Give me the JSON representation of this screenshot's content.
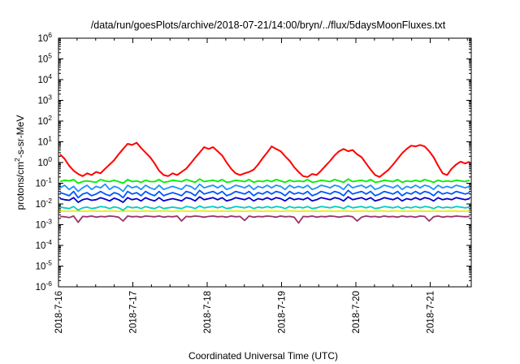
{
  "chart_data": {
    "type": "line",
    "title": "/data/run/goesPlots/archive/2018-07-21/14:00/bryn/../flux/5daysMoonFluxes.txt",
    "xlabel": "Coordinated Universal Time (UTC)",
    "ylabel_parts": [
      "protons/cm",
      "2",
      "-s-sr-MeV"
    ],
    "y_scale": "log",
    "ylim": [
      1e-06,
      1000000.0
    ],
    "y_ticks": [
      {
        "base": "10",
        "exp": "-6",
        "value": -6
      },
      {
        "base": "10",
        "exp": "-5",
        "value": -5
      },
      {
        "base": "10",
        "exp": "-4",
        "value": -4
      },
      {
        "base": "10",
        "exp": "-3",
        "value": -3
      },
      {
        "base": "10",
        "exp": "-2",
        "value": -2
      },
      {
        "base": "10",
        "exp": "-1",
        "value": -1
      },
      {
        "base": "10",
        "exp": "0",
        "value": 0
      },
      {
        "base": "10",
        "exp": "1",
        "value": 1
      },
      {
        "base": "10",
        "exp": "2",
        "value": 2
      },
      {
        "base": "10",
        "exp": "3",
        "value": 3
      },
      {
        "base": "10",
        "exp": "4",
        "value": 4
      },
      {
        "base": "10",
        "exp": "5",
        "value": 5
      },
      {
        "base": "10",
        "exp": "6",
        "value": 6
      }
    ],
    "x_range_days": [
      "2018-7-16",
      "2018-7-21 14:00"
    ],
    "x_ticks": [
      "2018-7-16",
      "2018-7-17",
      "2018-7-18",
      "2018-7-19",
      "2018-7-20",
      "2018-7-21"
    ],
    "grid": false,
    "legend": "none",
    "series": [
      {
        "color": "#ff0000",
        "values": [
          2.5,
          1.5,
          0.7,
          0.4,
          0.28,
          0.22,
          0.3,
          0.25,
          0.35,
          0.3,
          0.5,
          0.8,
          1.3,
          2.5,
          4.5,
          8,
          7,
          9,
          5,
          3,
          1.8,
          0.9,
          0.4,
          0.25,
          0.22,
          0.3,
          0.25,
          0.35,
          0.5,
          0.9,
          1.7,
          3,
          5.5,
          4.5,
          5.5,
          3.5,
          2.2,
          1,
          0.5,
          0.3,
          0.25,
          0.3,
          0.35,
          0.45,
          0.8,
          1.6,
          3,
          6,
          4.5,
          3.5,
          2,
          1.2,
          0.6,
          0.35,
          0.22,
          0.2,
          0.28,
          0.25,
          0.4,
          0.7,
          1.2,
          2.2,
          3.5,
          4.5,
          3.5,
          4,
          2.5,
          1.8,
          0.9,
          0.45,
          0.25,
          0.2,
          0.3,
          0.45,
          0.8,
          1.5,
          2.8,
          4.5,
          6.5,
          6,
          7,
          6,
          3.5,
          1.8,
          0.7,
          0.3,
          0.25,
          0.5,
          0.8,
          1.1,
          0.9,
          1.1
        ]
      },
      {
        "color": "#00ee00",
        "values": [
          0.12,
          0.14,
          0.13,
          0.15,
          0.1,
          0.12,
          0.13,
          0.12,
          0.11,
          0.15,
          0.13,
          0.12,
          0.14,
          0.12,
          0.1,
          0.15,
          0.12,
          0.13,
          0.11,
          0.14,
          0.12,
          0.12,
          0.15,
          0.11,
          0.12,
          0.14,
          0.13,
          0.12,
          0.15,
          0.13,
          0.11,
          0.16,
          0.12,
          0.13,
          0.14,
          0.12,
          0.15,
          0.11,
          0.12,
          0.14,
          0.13,
          0.12,
          0.15,
          0.11,
          0.13,
          0.12,
          0.14,
          0.12,
          0.15,
          0.13,
          0.11,
          0.14,
          0.12,
          0.13,
          0.12,
          0.15,
          0.11,
          0.12,
          0.14,
          0.13,
          0.12,
          0.15,
          0.13,
          0.11,
          0.16,
          0.12,
          0.13,
          0.14,
          0.12,
          0.15,
          0.11,
          0.12,
          0.14,
          0.13,
          0.12,
          0.15,
          0.11,
          0.13,
          0.12,
          0.14,
          0.12,
          0.15,
          0.13,
          0.11,
          0.14,
          0.12,
          0.13,
          0.12,
          0.14,
          0.13,
          0.12,
          0.14
        ]
      },
      {
        "color": "#1e90ff",
        "values": [
          0.06,
          0.08,
          0.05,
          0.07,
          0.04,
          0.06,
          0.08,
          0.05,
          0.07,
          0.06,
          0.09,
          0.05,
          0.07,
          0.06,
          0.04,
          0.08,
          0.06,
          0.07,
          0.05,
          0.08,
          0.06,
          0.05,
          0.08,
          0.05,
          0.06,
          0.07,
          0.06,
          0.05,
          0.08,
          0.07,
          0.05,
          0.09,
          0.06,
          0.07,
          0.08,
          0.06,
          0.08,
          0.05,
          0.06,
          0.08,
          0.07,
          0.06,
          0.08,
          0.05,
          0.07,
          0.06,
          0.08,
          0.06,
          0.08,
          0.07,
          0.05,
          0.08,
          0.06,
          0.07,
          0.06,
          0.08,
          0.05,
          0.06,
          0.08,
          0.07,
          0.06,
          0.08,
          0.07,
          0.05,
          0.09,
          0.06,
          0.07,
          0.08,
          0.06,
          0.08,
          0.05,
          0.06,
          0.08,
          0.07,
          0.06,
          0.08,
          0.05,
          0.07,
          0.06,
          0.08,
          0.06,
          0.08,
          0.07,
          0.05,
          0.08,
          0.06,
          0.07,
          0.06,
          0.08,
          0.07,
          0.06,
          0.07
        ]
      },
      {
        "color": "#0055ff",
        "values": [
          0.035,
          0.03,
          0.025,
          0.04,
          0.02,
          0.03,
          0.035,
          0.025,
          0.03,
          0.04,
          0.03,
          0.025,
          0.035,
          0.03,
          0.02,
          0.04,
          0.03,
          0.035,
          0.025,
          0.04,
          0.03,
          0.025,
          0.04,
          0.025,
          0.03,
          0.035,
          0.03,
          0.025,
          0.04,
          0.035,
          0.025,
          0.045,
          0.03,
          0.035,
          0.04,
          0.03,
          0.04,
          0.025,
          0.03,
          0.04,
          0.035,
          0.03,
          0.04,
          0.025,
          0.035,
          0.03,
          0.04,
          0.03,
          0.04,
          0.035,
          0.025,
          0.04,
          0.03,
          0.035,
          0.03,
          0.04,
          0.025,
          0.03,
          0.04,
          0.035,
          0.03,
          0.04,
          0.035,
          0.025,
          0.045,
          0.03,
          0.035,
          0.04,
          0.03,
          0.04,
          0.025,
          0.03,
          0.04,
          0.035,
          0.03,
          0.04,
          0.025,
          0.035,
          0.03,
          0.04,
          0.03,
          0.04,
          0.035,
          0.025,
          0.04,
          0.03,
          0.035,
          0.03,
          0.04,
          0.035,
          0.03,
          0.035
        ]
      },
      {
        "color": "#0000cc",
        "values": [
          0.018,
          0.016,
          0.015,
          0.02,
          0.012,
          0.016,
          0.018,
          0.015,
          0.016,
          0.02,
          0.017,
          0.014,
          0.019,
          0.016,
          0.012,
          0.02,
          0.016,
          0.018,
          0.014,
          0.02,
          0.016,
          0.014,
          0.02,
          0.014,
          0.016,
          0.018,
          0.016,
          0.014,
          0.02,
          0.018,
          0.014,
          0.022,
          0.016,
          0.018,
          0.02,
          0.016,
          0.02,
          0.014,
          0.016,
          0.02,
          0.018,
          0.016,
          0.02,
          0.014,
          0.018,
          0.016,
          0.02,
          0.016,
          0.02,
          0.018,
          0.014,
          0.02,
          0.016,
          0.018,
          0.016,
          0.02,
          0.014,
          0.016,
          0.02,
          0.018,
          0.016,
          0.02,
          0.018,
          0.014,
          0.022,
          0.016,
          0.018,
          0.02,
          0.016,
          0.02,
          0.014,
          0.016,
          0.02,
          0.018,
          0.016,
          0.02,
          0.014,
          0.018,
          0.016,
          0.02,
          0.016,
          0.02,
          0.018,
          0.014,
          0.02,
          0.016,
          0.018,
          0.016,
          0.02,
          0.018,
          0.016,
          0.018
        ]
      },
      {
        "color": "#00cccc",
        "values": [
          0.007,
          0.0065,
          0.006,
          0.0075,
          0.005,
          0.0065,
          0.007,
          0.006,
          0.0065,
          0.0075,
          0.007,
          0.006,
          0.0072,
          0.0065,
          0.005,
          0.0075,
          0.0065,
          0.007,
          0.006,
          0.0075,
          0.0065,
          0.006,
          0.0075,
          0.006,
          0.0065,
          0.007,
          0.0065,
          0.006,
          0.0075,
          0.007,
          0.006,
          0.008,
          0.0065,
          0.007,
          0.0075,
          0.0065,
          0.0075,
          0.006,
          0.0065,
          0.0075,
          0.007,
          0.0065,
          0.0075,
          0.006,
          0.007,
          0.0065,
          0.0075,
          0.0065,
          0.0075,
          0.007,
          0.006,
          0.0075,
          0.0065,
          0.007,
          0.0065,
          0.0075,
          0.006,
          0.0065,
          0.0075,
          0.007,
          0.0065,
          0.0075,
          0.007,
          0.006,
          0.008,
          0.0065,
          0.007,
          0.0075,
          0.0065,
          0.0075,
          0.006,
          0.0065,
          0.0075,
          0.007,
          0.0065,
          0.0075,
          0.006,
          0.007,
          0.0065,
          0.0075,
          0.0065,
          0.0075,
          0.007,
          0.006,
          0.0075,
          0.0065,
          0.007,
          0.0065,
          0.0075,
          0.007,
          0.0065,
          0.007
        ]
      },
      {
        "color": "#eeee00",
        "values": [
          0.0045,
          0.0045,
          0.0044,
          0.0046,
          0.0045,
          0.0044,
          0.0045,
          0.0046,
          0.0045,
          0.0044,
          0.0045,
          0.0046,
          0.0045,
          0.0044,
          0.0045,
          0.0046,
          0.0045,
          0.0044,
          0.0045,
          0.0046,
          0.0045,
          0.0044,
          0.0045,
          0.0046,
          0.0045,
          0.0044,
          0.0045,
          0.0046,
          0.0045,
          0.0044,
          0.0045,
          0.0046,
          0.0045,
          0.0044,
          0.0045,
          0.0046,
          0.0045,
          0.0044,
          0.0045,
          0.0046,
          0.0045,
          0.0044,
          0.0045,
          0.0046,
          0.0045,
          0.0044,
          0.0045,
          0.0046,
          0.0045,
          0.0044,
          0.0045,
          0.0046,
          0.0045,
          0.0044,
          0.0045,
          0.0046,
          0.0045,
          0.0044,
          0.0045,
          0.0046,
          0.0045,
          0.0044,
          0.0045,
          0.0046,
          0.0045,
          0.0044,
          0.0045,
          0.0046,
          0.0045,
          0.0044,
          0.0045,
          0.0046,
          0.0045,
          0.0044,
          0.0045,
          0.0046,
          0.0045,
          0.0044,
          0.0045,
          0.0046,
          0.0045,
          0.0044,
          0.0045,
          0.0046,
          0.0045,
          0.0044,
          0.0045,
          0.0046,
          0.0045,
          0.0044,
          0.0045,
          0.0045
        ]
      },
      {
        "color": "#993366",
        "values": [
          0.0025,
          0.0024,
          0.0022,
          0.0026,
          0.0013,
          0.0025,
          0.0024,
          0.0026,
          0.0023,
          0.0025,
          0.0024,
          0.0026,
          0.0025,
          0.0023,
          0.0015,
          0.0026,
          0.0024,
          0.0025,
          0.0023,
          0.0026,
          0.0025,
          0.0024,
          0.0026,
          0.0023,
          0.0025,
          0.0024,
          0.0026,
          0.0015,
          0.0025,
          0.0024,
          0.0026,
          0.0025,
          0.0023,
          0.0025,
          0.0026,
          0.0024,
          0.0025,
          0.0023,
          0.0026,
          0.0024,
          0.0025,
          0.0016,
          0.0026,
          0.0023,
          0.0025,
          0.0024,
          0.0026,
          0.0025,
          0.0023,
          0.0026,
          0.0024,
          0.0025,
          0.0023,
          0.0012,
          0.0025,
          0.0024,
          0.0026,
          0.0023,
          0.0025,
          0.0024,
          0.0026,
          0.0025,
          0.0023,
          0.0025,
          0.0026,
          0.0024,
          0.0015,
          0.0023,
          0.0026,
          0.0024,
          0.0025,
          0.0023,
          0.0026,
          0.0024,
          0.0025,
          0.0023,
          0.0026,
          0.0024,
          0.0025,
          0.0023,
          0.0026,
          0.0025,
          0.0015,
          0.0024,
          0.0026,
          0.0023,
          0.0025,
          0.0024,
          0.0026,
          0.0025,
          0.0024,
          0.0025
        ]
      }
    ]
  }
}
